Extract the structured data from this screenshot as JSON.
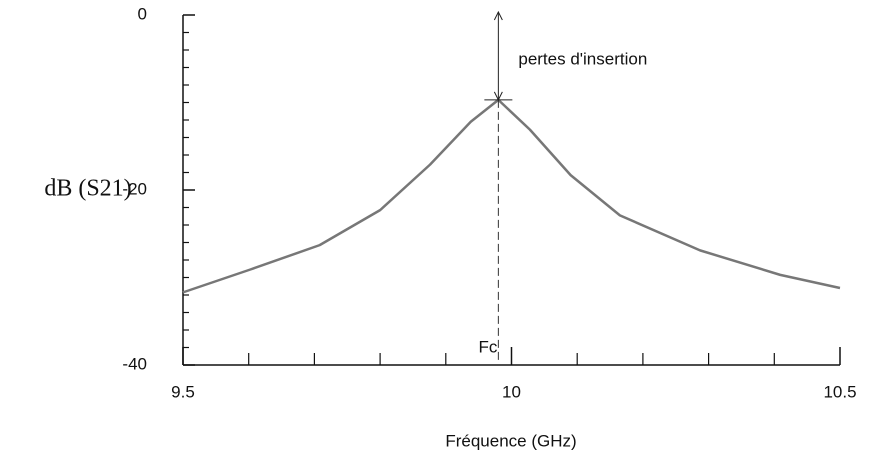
{
  "chart_data": {
    "type": "line",
    "ylabel": "dB (S21)",
    "xlabel": "Fréquence (GHz)",
    "x": [
      9.5,
      9.602,
      9.708,
      9.8,
      9.876,
      9.938,
      9.98,
      10.028,
      10.09,
      10.165,
      10.287,
      10.409,
      10.5
    ],
    "series": [
      {
        "color": "#777777",
        "values": [
          -31.7,
          -29.1,
          -26.3,
          -22.3,
          -17.1,
          -12.2,
          -9.7,
          -13.1,
          -18.3,
          -22.9,
          -26.9,
          -29.7,
          -31.2
        ]
      }
    ],
    "xlim": [
      9.5,
      10.5
    ],
    "xticks": [
      {
        "value": 9.5,
        "label": "9.5"
      },
      10,
      {
        "value": 10.5,
        "label": "10.5"
      }
    ],
    "ylim": [
      -40,
      0
    ],
    "yticks": [
      -40,
      -20,
      0
    ],
    "annotations": [
      {
        "text": "pertes d'insertion"
      },
      {
        "text": "Fc",
        "x": 9.98
      }
    ]
  }
}
